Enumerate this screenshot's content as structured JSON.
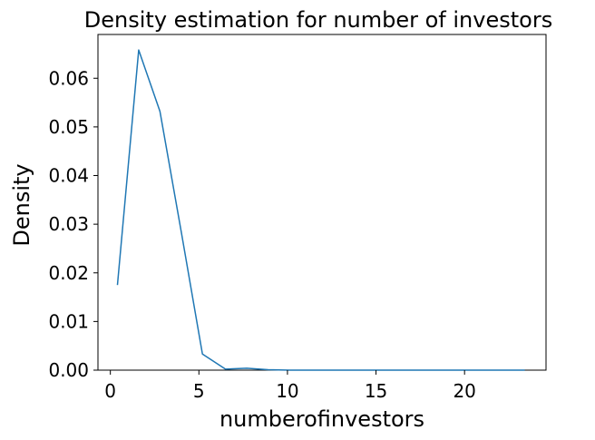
{
  "chart_data": {
    "type": "line",
    "title": "Density estimation for number of investors",
    "xlabel": "numberofinvestors",
    "ylabel": "Density",
    "xlim": [
      -0.7,
      24.6
    ],
    "ylim": [
      0,
      0.069
    ],
    "x_ticks": [
      0,
      5,
      10,
      15,
      20
    ],
    "x_tick_labels": [
      "0",
      "5",
      "10",
      "15",
      "20"
    ],
    "y_ticks": [
      0.0,
      0.01,
      0.02,
      0.03,
      0.04,
      0.05,
      0.06
    ],
    "y_tick_labels": [
      "0.00",
      "0.01",
      "0.02",
      "0.03",
      "0.04",
      "0.05",
      "0.06"
    ],
    "grid": false,
    "series": [
      {
        "color": "#1f77b4",
        "x": [
          0.4,
          1.6,
          2.8,
          4.0,
          5.2,
          6.5,
          7.7,
          8.9,
          10.1,
          11.3,
          12.5,
          13.7,
          14.9,
          16.1,
          17.4,
          18.6,
          19.8,
          21.0,
          22.2,
          23.4
        ],
        "y": [
          0.0175,
          0.0658,
          0.0532,
          0.0285,
          0.0033,
          0.0002,
          0.0004,
          0.0001,
          0.0,
          0.0,
          0.0,
          0.0,
          0.0,
          0.0,
          0.0,
          0.0,
          0.0,
          0.0,
          0.0,
          0.0
        ]
      }
    ]
  }
}
